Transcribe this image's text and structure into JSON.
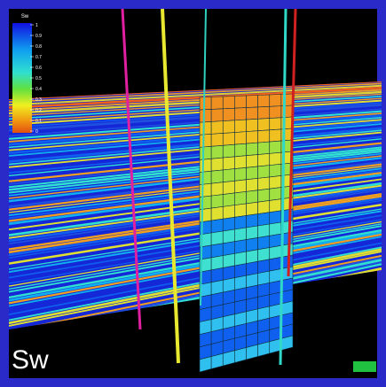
{
  "caption": "Sw",
  "colorbar": {
    "title": "Sw",
    "ticks": [
      1,
      0.9,
      0.8,
      0.7,
      0.6,
      0.5,
      0.4,
      0.3,
      0.2,
      0.1,
      0
    ]
  }
}
